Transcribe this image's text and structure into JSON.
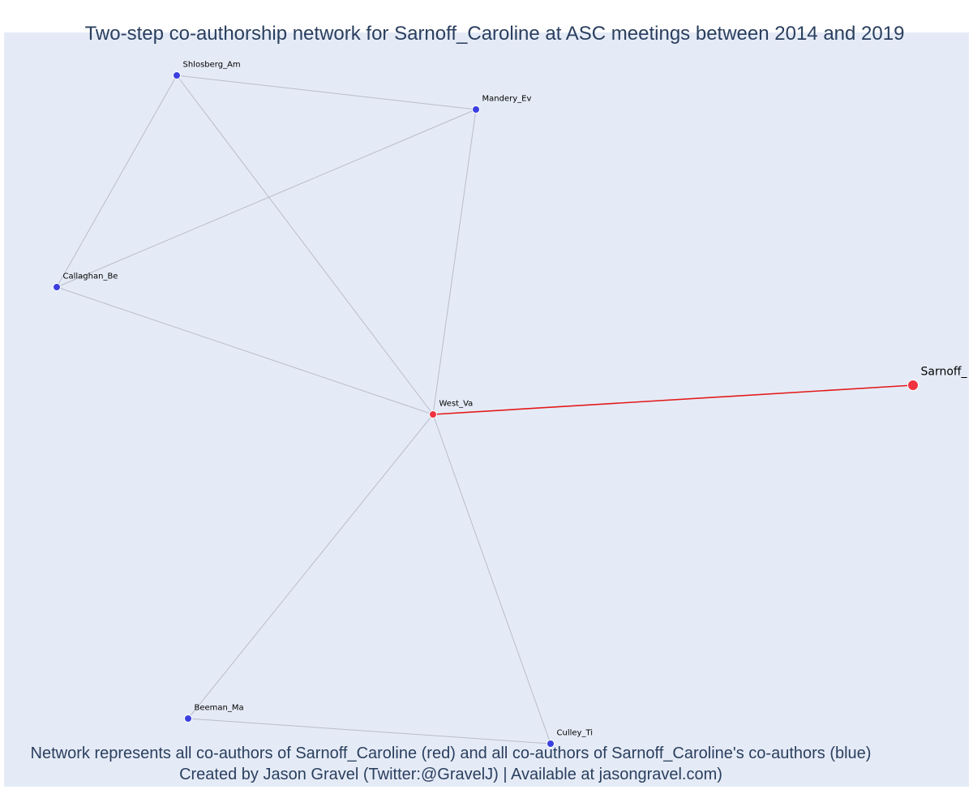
{
  "title": "Two-step co-authorship network for Sarnoff_Caroline at ASC meetings between 2014 and 2019",
  "caption_line1": "Network represents all co-authors of Sarnoff_Caroline (red) and all co-authors of Sarnoff_Caroline's co-authors (blue)",
  "caption_line2": "Created by Jason Gravel (Twitter:@GravelJ) | Available at jasongravel.com)",
  "colors": {
    "background": "#e5ebf6",
    "text": "#2a3f5f",
    "ego": "#ef3340",
    "first_degree": "#ef3340",
    "second_degree": "#3b3fe0",
    "ego_edge": "#e31a1c",
    "edge": "#b9bccc"
  },
  "nodes": [
    {
      "id": "sarnoff",
      "label": "Sarnoff_",
      "group": "ego"
    },
    {
      "id": "west",
      "label": "West_Va",
      "group": "first_degree"
    },
    {
      "id": "shlosberg",
      "label": "Shlosberg_Am",
      "group": "second_degree"
    },
    {
      "id": "mandery",
      "label": "Mandery_Ev",
      "group": "second_degree"
    },
    {
      "id": "callaghan",
      "label": "Callaghan_Be",
      "group": "second_degree"
    },
    {
      "id": "beeman",
      "label": "Beeman_Ma",
      "group": "second_degree"
    },
    {
      "id": "culley",
      "label": "Culley_Ti",
      "group": "second_degree"
    }
  ],
  "edges": [
    {
      "source": "west",
      "target": "sarnoff",
      "type": "ego"
    },
    {
      "source": "shlosberg",
      "target": "mandery",
      "type": "co-author"
    },
    {
      "source": "shlosberg",
      "target": "callaghan",
      "type": "co-author"
    },
    {
      "source": "shlosberg",
      "target": "west",
      "type": "co-author"
    },
    {
      "source": "mandery",
      "target": "callaghan",
      "type": "co-author"
    },
    {
      "source": "mandery",
      "target": "west",
      "type": "co-author"
    },
    {
      "source": "callaghan",
      "target": "west",
      "type": "co-author"
    },
    {
      "source": "west",
      "target": "beeman",
      "type": "co-author"
    },
    {
      "source": "west",
      "target": "culley",
      "type": "co-author"
    },
    {
      "source": "beeman",
      "target": "culley",
      "type": "co-author"
    }
  ]
}
